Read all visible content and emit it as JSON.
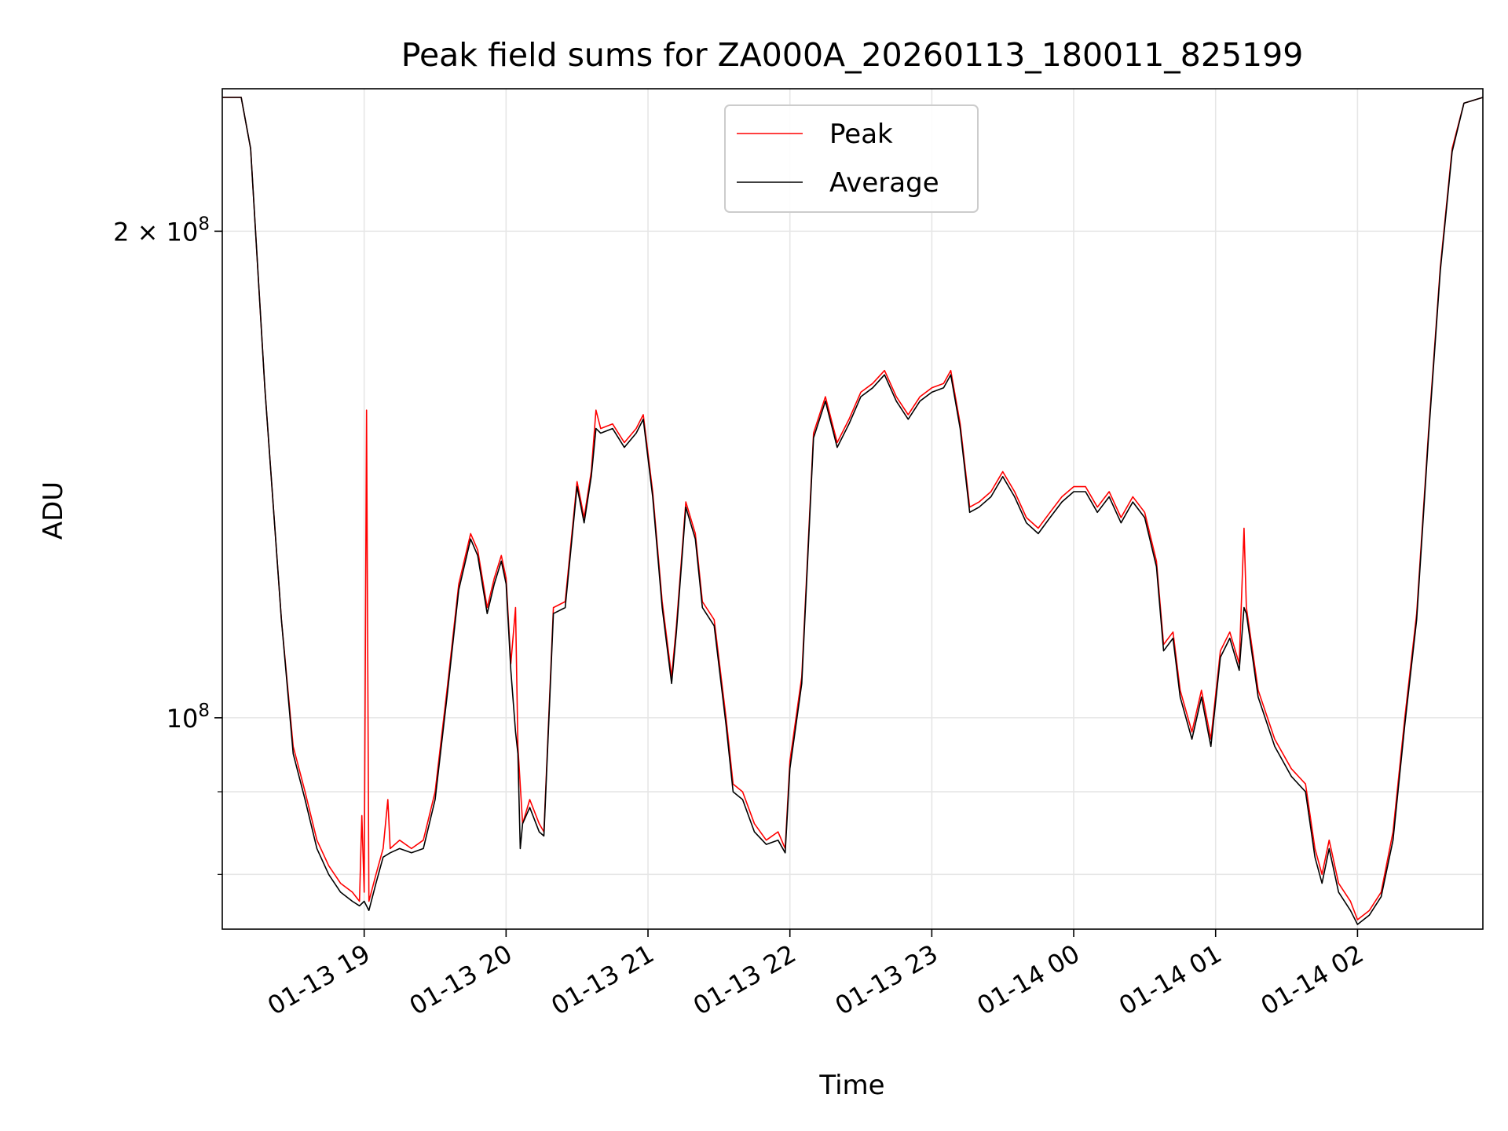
{
  "chart_data": {
    "type": "line",
    "title": "Peak field sums for ZA000A_20260113_180011_825199",
    "xlabel": "Time",
    "ylabel": "ADU",
    "yscale": "log",
    "ylim": [
      74000000,
      245000000
    ],
    "xlim": [
      "01-13 18:00",
      "01-14 02:53"
    ],
    "x_ticks": [
      "01-13 19",
      "01-13 20",
      "01-13 21",
      "01-13 22",
      "01-13 23",
      "01-14 00",
      "01-14 01",
      "01-14 02"
    ],
    "y_ticks": [
      {
        "value": 200000000,
        "label_base": "2 × 10",
        "label_exp": "8"
      },
      {
        "value": 100000000,
        "label_base": "10",
        "label_exp": "8"
      }
    ],
    "y_minor_ticks": [
      80000000,
      90000000
    ],
    "grid": true,
    "legend_position": "top-center",
    "colors": {
      "peak": "#ff0000",
      "average": "#000000",
      "grid": "#e6e6e6"
    },
    "series": [
      {
        "name": "Peak",
        "color": "#ff0000",
        "points": [
          [
            "01-13 18:00",
            242000000
          ],
          [
            "01-13 18:08",
            242000000
          ],
          [
            "01-13 18:12",
            225000000
          ],
          [
            "01-13 18:18",
            160000000
          ],
          [
            "01-13 18:25",
            115000000
          ],
          [
            "01-13 18:30",
            96000000
          ],
          [
            "01-13 18:35",
            90000000
          ],
          [
            "01-13 18:40",
            84000000
          ],
          [
            "01-13 18:45",
            81000000
          ],
          [
            "01-13 18:50",
            79000000
          ],
          [
            "01-13 18:55",
            78000000
          ],
          [
            "01-13 18:58",
            77000000
          ],
          [
            "01-13 18:59",
            87000000
          ],
          [
            "01-13 19:00",
            78000000
          ],
          [
            "01-13 19:01",
            155000000
          ],
          [
            "01-13 19:02",
            77000000
          ],
          [
            "01-13 19:05",
            80000000
          ],
          [
            "01-13 19:08",
            83000000
          ],
          [
            "01-13 19:10",
            89000000
          ],
          [
            "01-13 19:11",
            83000000
          ],
          [
            "01-13 19:15",
            84000000
          ],
          [
            "01-13 19:20",
            83000000
          ],
          [
            "01-13 19:25",
            84000000
          ],
          [
            "01-13 19:30",
            90000000
          ],
          [
            "01-13 19:35",
            104000000
          ],
          [
            "01-13 19:40",
            121000000
          ],
          [
            "01-13 19:45",
            130000000
          ],
          [
            "01-13 19:48",
            127000000
          ],
          [
            "01-13 19:52",
            117000000
          ],
          [
            "01-13 19:55",
            122000000
          ],
          [
            "01-13 19:58",
            126000000
          ],
          [
            "01-13 20:00",
            122000000
          ],
          [
            "01-13 20:02",
            108000000
          ],
          [
            "01-13 20:04",
            117000000
          ],
          [
            "01-13 20:05",
            96000000
          ],
          [
            "01-13 20:07",
            86000000
          ],
          [
            "01-13 20:10",
            89000000
          ],
          [
            "01-13 20:14",
            86000000
          ],
          [
            "01-13 20:16",
            85000000
          ],
          [
            "01-13 20:20",
            117000000
          ],
          [
            "01-13 20:25",
            118000000
          ],
          [
            "01-13 20:30",
            140000000
          ],
          [
            "01-13 20:33",
            133000000
          ],
          [
            "01-13 20:36",
            142000000
          ],
          [
            "01-13 20:38",
            155000000
          ],
          [
            "01-13 20:40",
            151000000
          ],
          [
            "01-13 20:45",
            152000000
          ],
          [
            "01-13 20:50",
            148000000
          ],
          [
            "01-13 20:55",
            151000000
          ],
          [
            "01-13 20:58",
            154000000
          ],
          [
            "01-13 21:02",
            138000000
          ],
          [
            "01-13 21:06",
            118000000
          ],
          [
            "01-13 21:10",
            106000000
          ],
          [
            "01-13 21:12",
            114000000
          ],
          [
            "01-13 21:16",
            136000000
          ],
          [
            "01-13 21:20",
            130000000
          ],
          [
            "01-13 21:23",
            118000000
          ],
          [
            "01-13 21:28",
            115000000
          ],
          [
            "01-13 21:33",
            100000000
          ],
          [
            "01-13 21:36",
            91000000
          ],
          [
            "01-13 21:40",
            90000000
          ],
          [
            "01-13 21:45",
            86000000
          ],
          [
            "01-13 21:50",
            84000000
          ],
          [
            "01-13 21:55",
            85000000
          ],
          [
            "01-13 21:58",
            83000000
          ],
          [
            "01-13 22:00",
            94000000
          ],
          [
            "01-13 22:05",
            106000000
          ],
          [
            "01-13 22:10",
            150000000
          ],
          [
            "01-13 22:15",
            158000000
          ],
          [
            "01-13 22:20",
            148000000
          ],
          [
            "01-13 22:25",
            153000000
          ],
          [
            "01-13 22:30",
            159000000
          ],
          [
            "01-13 22:35",
            161000000
          ],
          [
            "01-13 22:40",
            164000000
          ],
          [
            "01-13 22:45",
            158000000
          ],
          [
            "01-13 22:50",
            154000000
          ],
          [
            "01-13 22:55",
            158000000
          ],
          [
            "01-13 23:00",
            160000000
          ],
          [
            "01-13 23:05",
            161000000
          ],
          [
            "01-13 23:08",
            164000000
          ],
          [
            "01-13 23:12",
            152000000
          ],
          [
            "01-13 23:16",
            135000000
          ],
          [
            "01-13 23:20",
            136000000
          ],
          [
            "01-13 23:25",
            138000000
          ],
          [
            "01-13 23:30",
            142000000
          ],
          [
            "01-13 23:35",
            138000000
          ],
          [
            "01-13 23:40",
            133000000
          ],
          [
            "01-13 23:45",
            131000000
          ],
          [
            "01-13 23:50",
            134000000
          ],
          [
            "01-13 23:55",
            137000000
          ],
          [
            "01-14 00:00",
            139000000
          ],
          [
            "01-14 00:05",
            139000000
          ],
          [
            "01-14 00:10",
            135000000
          ],
          [
            "01-14 00:15",
            138000000
          ],
          [
            "01-14 00:20",
            133000000
          ],
          [
            "01-14 00:25",
            137000000
          ],
          [
            "01-14 00:30",
            134000000
          ],
          [
            "01-14 00:35",
            125000000
          ],
          [
            "01-14 00:38",
            111000000
          ],
          [
            "01-14 00:42",
            113000000
          ],
          [
            "01-14 00:45",
            104000000
          ],
          [
            "01-14 00:50",
            98000000
          ],
          [
            "01-14 00:54",
            104000000
          ],
          [
            "01-14 00:58",
            97000000
          ],
          [
            "01-14 01:02",
            110000000
          ],
          [
            "01-14 01:06",
            113000000
          ],
          [
            "01-14 01:10",
            108000000
          ],
          [
            "01-14 01:12",
            131000000
          ],
          [
            "01-14 01:13",
            117000000
          ],
          [
            "01-14 01:18",
            104000000
          ],
          [
            "01-14 01:25",
            97000000
          ],
          [
            "01-14 01:32",
            93000000
          ],
          [
            "01-14 01:38",
            91000000
          ],
          [
            "01-14 01:42",
            83000000
          ],
          [
            "01-14 01:45",
            80000000
          ],
          [
            "01-14 01:48",
            84000000
          ],
          [
            "01-14 01:52",
            79000000
          ],
          [
            "01-14 01:57",
            77000000
          ],
          [
            "01-14 02:00",
            75000000
          ],
          [
            "01-14 02:05",
            76000000
          ],
          [
            "01-14 02:10",
            78000000
          ],
          [
            "01-14 02:15",
            85000000
          ],
          [
            "01-14 02:20",
            100000000
          ],
          [
            "01-14 02:25",
            116000000
          ],
          [
            "01-14 02:30",
            150000000
          ],
          [
            "01-14 02:35",
            190000000
          ],
          [
            "01-14 02:40",
            225000000
          ],
          [
            "01-14 02:45",
            240000000
          ],
          [
            "01-14 02:53",
            242000000
          ]
        ]
      },
      {
        "name": "Average",
        "color": "#000000",
        "points": [
          [
            "01-13 18:00",
            242000000
          ],
          [
            "01-13 18:08",
            242000000
          ],
          [
            "01-13 18:12",
            225000000
          ],
          [
            "01-13 18:18",
            160000000
          ],
          [
            "01-13 18:25",
            115000000
          ],
          [
            "01-13 18:30",
            95000000
          ],
          [
            "01-13 18:35",
            89000000
          ],
          [
            "01-13 18:40",
            83000000
          ],
          [
            "01-13 18:45",
            80000000
          ],
          [
            "01-13 18:50",
            78000000
          ],
          [
            "01-13 18:55",
            77000000
          ],
          [
            "01-13 18:58",
            76500000
          ],
          [
            "01-13 19:00",
            77000000
          ],
          [
            "01-13 19:02",
            76000000
          ],
          [
            "01-13 19:05",
            79000000
          ],
          [
            "01-13 19:08",
            82000000
          ],
          [
            "01-13 19:11",
            82500000
          ],
          [
            "01-13 19:15",
            83000000
          ],
          [
            "01-13 19:20",
            82500000
          ],
          [
            "01-13 19:25",
            83000000
          ],
          [
            "01-13 19:30",
            89000000
          ],
          [
            "01-13 19:35",
            103000000
          ],
          [
            "01-13 19:40",
            120000000
          ],
          [
            "01-13 19:45",
            129000000
          ],
          [
            "01-13 19:48",
            126000000
          ],
          [
            "01-13 19:52",
            116000000
          ],
          [
            "01-13 19:55",
            121000000
          ],
          [
            "01-13 19:58",
            125000000
          ],
          [
            "01-13 20:00",
            121000000
          ],
          [
            "01-13 20:02",
            107000000
          ],
          [
            "01-13 20:04",
            98000000
          ],
          [
            "01-13 20:05",
            95000000
          ],
          [
            "01-13 20:06",
            83000000
          ],
          [
            "01-13 20:07",
            86000000
          ],
          [
            "01-13 20:10",
            88000000
          ],
          [
            "01-13 20:14",
            85000000
          ],
          [
            "01-13 20:16",
            84500000
          ],
          [
            "01-13 20:20",
            116000000
          ],
          [
            "01-13 20:25",
            117000000
          ],
          [
            "01-13 20:30",
            139000000
          ],
          [
            "01-13 20:33",
            132000000
          ],
          [
            "01-13 20:36",
            141000000
          ],
          [
            "01-13 20:38",
            151000000
          ],
          [
            "01-13 20:40",
            150000000
          ],
          [
            "01-13 20:45",
            151000000
          ],
          [
            "01-13 20:50",
            147000000
          ],
          [
            "01-13 20:55",
            150000000
          ],
          [
            "01-13 20:58",
            153000000
          ],
          [
            "01-13 21:02",
            137000000
          ],
          [
            "01-13 21:06",
            117000000
          ],
          [
            "01-13 21:10",
            105000000
          ],
          [
            "01-13 21:12",
            113000000
          ],
          [
            "01-13 21:16",
            135000000
          ],
          [
            "01-13 21:20",
            129000000
          ],
          [
            "01-13 21:23",
            117000000
          ],
          [
            "01-13 21:28",
            114000000
          ],
          [
            "01-13 21:33",
            99000000
          ],
          [
            "01-13 21:36",
            90000000
          ],
          [
            "01-13 21:40",
            89000000
          ],
          [
            "01-13 21:45",
            85000000
          ],
          [
            "01-13 21:50",
            83500000
          ],
          [
            "01-13 21:55",
            84000000
          ],
          [
            "01-13 21:58",
            82500000
          ],
          [
            "01-13 22:00",
            93000000
          ],
          [
            "01-13 22:05",
            105000000
          ],
          [
            "01-13 22:10",
            149000000
          ],
          [
            "01-13 22:15",
            157000000
          ],
          [
            "01-13 22:20",
            147000000
          ],
          [
            "01-13 22:25",
            152000000
          ],
          [
            "01-13 22:30",
            158000000
          ],
          [
            "01-13 22:35",
            160000000
          ],
          [
            "01-13 22:40",
            163000000
          ],
          [
            "01-13 22:45",
            157000000
          ],
          [
            "01-13 22:50",
            153000000
          ],
          [
            "01-13 22:55",
            157000000
          ],
          [
            "01-13 23:00",
            159000000
          ],
          [
            "01-13 23:05",
            160000000
          ],
          [
            "01-13 23:08",
            163000000
          ],
          [
            "01-13 23:12",
            151000000
          ],
          [
            "01-13 23:16",
            134000000
          ],
          [
            "01-13 23:20",
            135000000
          ],
          [
            "01-13 23:25",
            137000000
          ],
          [
            "01-13 23:30",
            141000000
          ],
          [
            "01-13 23:35",
            137000000
          ],
          [
            "01-13 23:40",
            132000000
          ],
          [
            "01-13 23:45",
            130000000
          ],
          [
            "01-13 23:50",
            133000000
          ],
          [
            "01-13 23:55",
            136000000
          ],
          [
            "01-14 00:00",
            138000000
          ],
          [
            "01-14 00:05",
            138000000
          ],
          [
            "01-14 00:10",
            134000000
          ],
          [
            "01-14 00:15",
            137000000
          ],
          [
            "01-14 00:20",
            132000000
          ],
          [
            "01-14 00:25",
            136000000
          ],
          [
            "01-14 00:30",
            133000000
          ],
          [
            "01-14 00:35",
            124000000
          ],
          [
            "01-14 00:38",
            110000000
          ],
          [
            "01-14 00:42",
            112000000
          ],
          [
            "01-14 00:45",
            103000000
          ],
          [
            "01-14 00:50",
            97000000
          ],
          [
            "01-14 00:54",
            103000000
          ],
          [
            "01-14 00:58",
            96000000
          ],
          [
            "01-14 01:02",
            109000000
          ],
          [
            "01-14 01:06",
            112000000
          ],
          [
            "01-14 01:10",
            107000000
          ],
          [
            "01-14 01:12",
            117000000
          ],
          [
            "01-14 01:13",
            116000000
          ],
          [
            "01-14 01:18",
            103000000
          ],
          [
            "01-14 01:25",
            96000000
          ],
          [
            "01-14 01:32",
            92000000
          ],
          [
            "01-14 01:38",
            90000000
          ],
          [
            "01-14 01:42",
            82000000
          ],
          [
            "01-14 01:45",
            79000000
          ],
          [
            "01-14 01:48",
            83000000
          ],
          [
            "01-14 01:52",
            78000000
          ],
          [
            "01-14 01:57",
            76000000
          ],
          [
            "01-14 02:00",
            74500000
          ],
          [
            "01-14 02:05",
            75500000
          ],
          [
            "01-14 02:10",
            77500000
          ],
          [
            "01-14 02:15",
            84000000
          ],
          [
            "01-14 02:20",
            99000000
          ],
          [
            "01-14 02:25",
            115000000
          ],
          [
            "01-14 02:30",
            149000000
          ],
          [
            "01-14 02:35",
            189000000
          ],
          [
            "01-14 02:40",
            224000000
          ],
          [
            "01-14 02:45",
            240000000
          ],
          [
            "01-14 02:53",
            242000000
          ]
        ]
      }
    ]
  }
}
